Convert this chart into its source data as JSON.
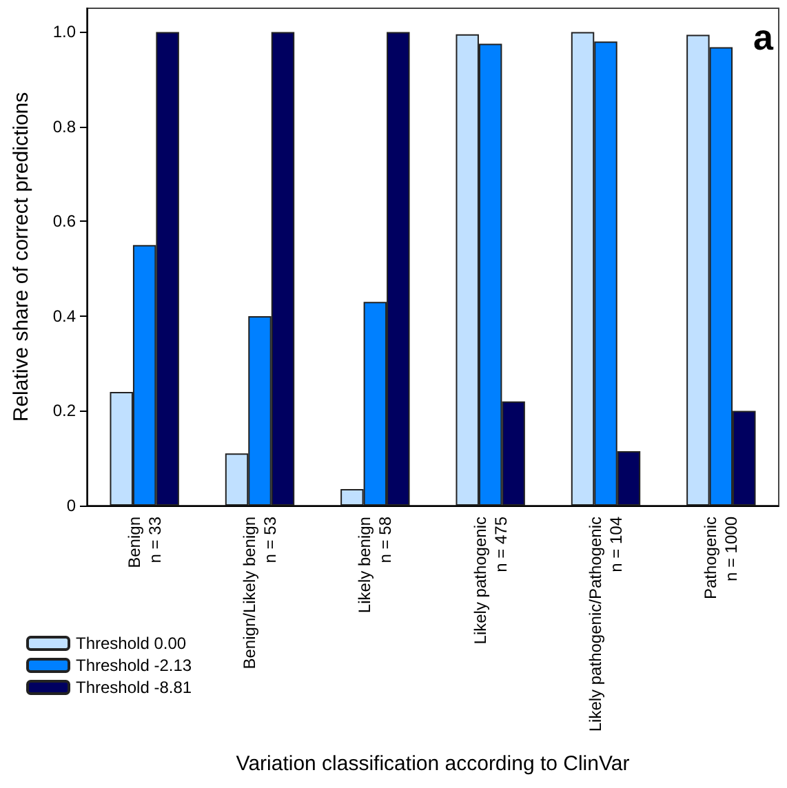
{
  "chart_data": {
    "type": "bar",
    "xlabel": "Variation classification according to ClinVar",
    "ylabel": "Relative share of correct predictions",
    "annotations": [
      "a"
    ],
    "categories": [
      "Benign\nn = 33",
      "Benign/Likely benign\nn = 53",
      "Likely benign\nn = 58",
      "Likely pathogenic\nn = 475",
      "Likely pathogenic/Pathogenic\nn = 104",
      "Pathogenic\nn = 1000"
    ],
    "series": [
      {
        "name": "Threshold 0.00",
        "color": "#c0e0ff",
        "values": [
          0.24,
          0.11,
          0.035,
          0.995,
          1.0,
          0.994
        ]
      },
      {
        "name": "Threshold -2.13",
        "color": "#0080ff",
        "values": [
          0.55,
          0.4,
          0.43,
          0.975,
          0.98,
          0.968
        ]
      },
      {
        "name": "Threshold -8.81",
        "color": "#000060",
        "values": [
          1.0,
          1.0,
          1.0,
          0.22,
          0.115,
          0.2
        ]
      }
    ],
    "ylim": [
      0,
      1.05
    ],
    "yticks": [
      {
        "value": 0,
        "label": "0"
      },
      {
        "value": 0.2,
        "label": "0.2"
      },
      {
        "value": 0.4,
        "label": "0.4"
      },
      {
        "value": 0.6,
        "label": "0.6"
      },
      {
        "value": 0.8,
        "label": "0.8"
      },
      {
        "value": 1.0,
        "label": "1.0"
      }
    ],
    "grid": false,
    "legend": "bottom left"
  }
}
